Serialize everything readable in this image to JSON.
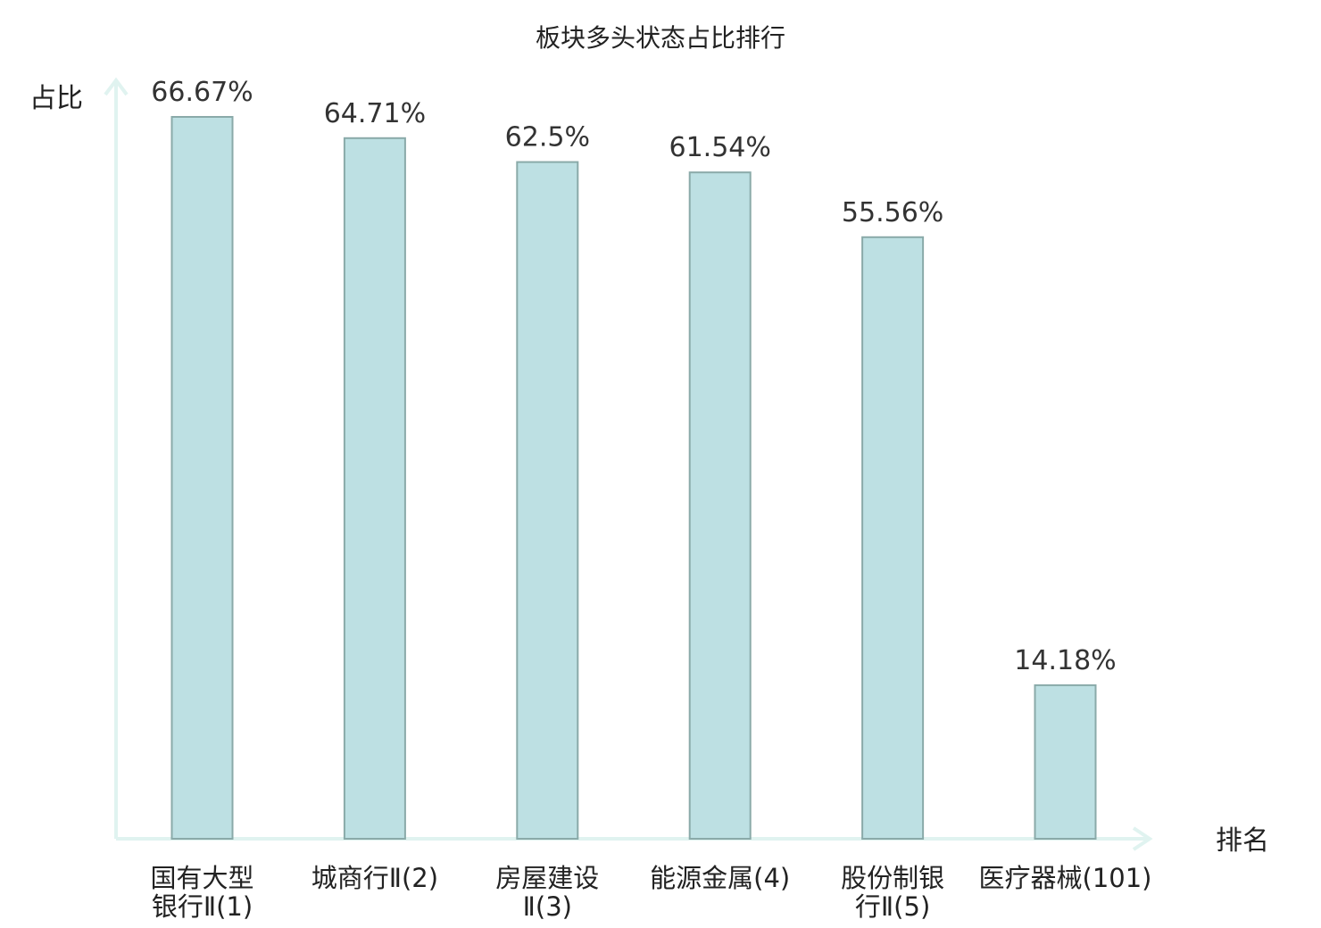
{
  "chart_data": {
    "type": "bar",
    "title": "板块多头状态占比排行",
    "ylabel": "占比",
    "xlabel": "排名",
    "ylim": [
      0,
      70
    ],
    "grid": false,
    "categories": [
      [
        "国有大型",
        "银行Ⅱ(1)"
      ],
      [
        "城商行Ⅱ(2)"
      ],
      [
        "房屋建设",
        "Ⅱ(3)"
      ],
      [
        "能源金属(4)"
      ],
      [
        "股份制银",
        "行Ⅱ(5)"
      ],
      [
        "医疗器械(101)"
      ]
    ],
    "values": [
      66.67,
      64.71,
      62.5,
      61.54,
      55.56,
      14.18
    ],
    "value_labels": [
      "66.67%",
      "64.71%",
      "62.5%",
      "61.54%",
      "55.56%",
      "14.18%"
    ],
    "highlight_category_index": 5
  },
  "colors": {
    "bar_fill": "#bde0e3",
    "bar_stroke": "#8aaaa9",
    "axis": "#e0f3f0",
    "highlight_text": "#e8231f",
    "text": "#222222"
  }
}
